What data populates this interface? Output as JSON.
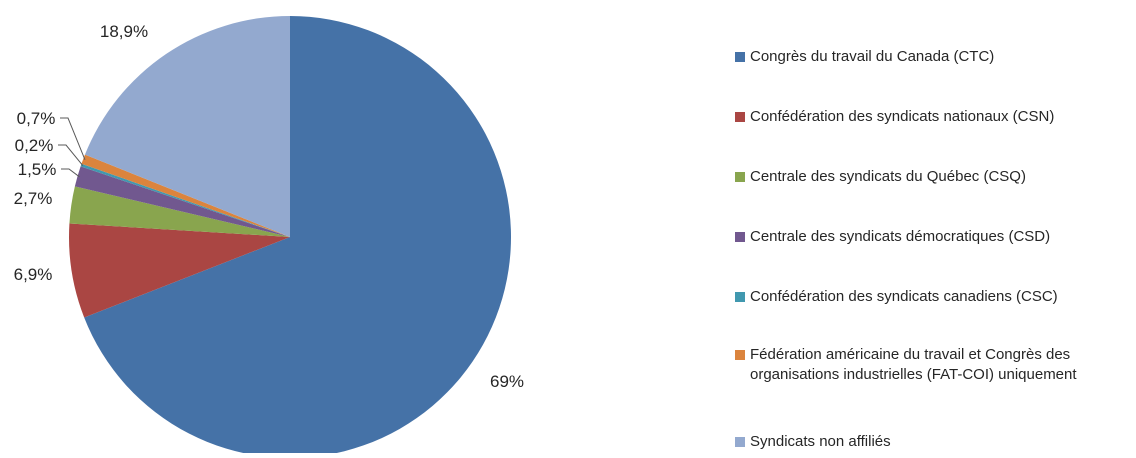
{
  "chart_data": {
    "type": "pie",
    "title": "",
    "categories": [
      "Congrès du travail du Canada (CTC)",
      "Confédération des syndicats nationaux (CSN)",
      "Centrale des syndicats du Québec (CSQ)",
      "Centrale des syndicats démocratiques (CSD)",
      "Confédération des syndicats canadiens (CSC)",
      "Fédération américaine du travail et Congrès des organisations industrielles (FAT-COI) uniquement",
      "Syndicats non affiliés"
    ],
    "values": [
      69,
      6.9,
      2.7,
      1.5,
      0.2,
      0.7,
      18.9
    ],
    "data_labels": [
      "69%",
      "6,9%",
      "2,7%",
      "1,5%",
      "0,2%",
      "0,7%",
      "18,9%"
    ],
    "colors": [
      "#4572A7",
      "#AA4643",
      "#89A54E",
      "#71588F",
      "#4198AF",
      "#DB843D",
      "#93A9CF"
    ],
    "legend_placement": "right"
  }
}
